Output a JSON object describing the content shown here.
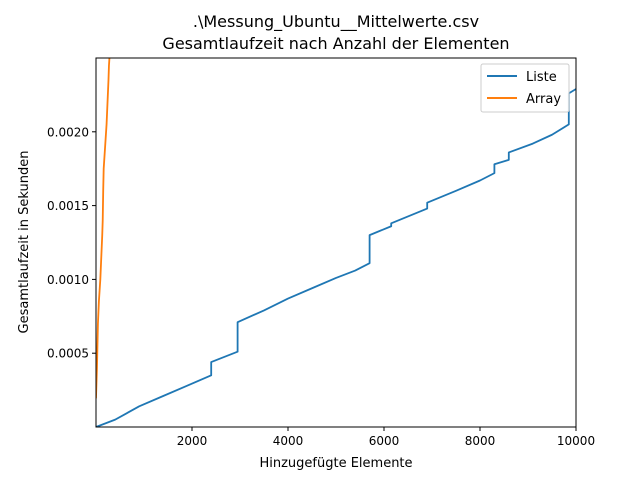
{
  "chart_data": {
    "type": "line",
    "title_line1": ".\\Messung_Ubuntu__Mittelwerte.csv",
    "title_line2": "Gesamtlaufzeit nach Anzahl der Elementen",
    "xlabel": "Hinzugefügte Elemente",
    "ylabel": "Gesamtlaufzeit in Sekunden",
    "xlim": [
      0,
      10000
    ],
    "ylim": [
      0,
      0.0025
    ],
    "x_ticks": [
      2000,
      4000,
      6000,
      8000,
      10000
    ],
    "y_ticks": [
      0.0005,
      0.001,
      0.0015,
      0.002
    ],
    "x_tick_labels": [
      "2000",
      "4000",
      "6000",
      "8000",
      "10000"
    ],
    "y_tick_labels": [
      "0.0005",
      "0.0010",
      "0.0015",
      "0.0020"
    ],
    "grid": false,
    "legend_position": "top-right",
    "series": [
      {
        "name": "Liste",
        "color": "#1f77b4",
        "points": [
          [
            0,
            0.0
          ],
          [
            400,
            5e-05
          ],
          [
            900,
            0.00014
          ],
          [
            1400,
            0.00021
          ],
          [
            1900,
            0.00028
          ],
          [
            2400,
            0.00035
          ],
          [
            2400,
            0.00044
          ],
          [
            2950,
            0.00051
          ],
          [
            2950,
            0.00071
          ],
          [
            3500,
            0.00079
          ],
          [
            4000,
            0.00087
          ],
          [
            4500,
            0.00094
          ],
          [
            5000,
            0.00101
          ],
          [
            5400,
            0.00106
          ],
          [
            5700,
            0.00111
          ],
          [
            5700,
            0.0013
          ],
          [
            6150,
            0.00136
          ],
          [
            6150,
            0.00138
          ],
          [
            6900,
            0.00148
          ],
          [
            6900,
            0.00152
          ],
          [
            7500,
            0.0016
          ],
          [
            8000,
            0.00167
          ],
          [
            8300,
            0.00172
          ],
          [
            8300,
            0.00178
          ],
          [
            8600,
            0.00181
          ],
          [
            8600,
            0.00186
          ],
          [
            9100,
            0.00192
          ],
          [
            9500,
            0.00198
          ],
          [
            9850,
            0.00205
          ],
          [
            9850,
            0.00226
          ],
          [
            10000,
            0.00229
          ]
        ]
      },
      {
        "name": "Array",
        "color": "#ff7f0e",
        "points": [
          [
            0,
            0.0002
          ],
          [
            20,
            0.0004
          ],
          [
            40,
            0.0007
          ],
          [
            60,
            0.00085
          ],
          [
            90,
            0.001
          ],
          [
            110,
            0.00115
          ],
          [
            130,
            0.0013
          ],
          [
            140,
            0.0014
          ],
          [
            150,
            0.0016
          ],
          [
            160,
            0.00175
          ],
          [
            180,
            0.00185
          ],
          [
            200,
            0.00195
          ],
          [
            220,
            0.00205
          ],
          [
            240,
            0.0022
          ],
          [
            260,
            0.00235
          ],
          [
            270,
            0.00245
          ],
          [
            280,
            0.0025
          ]
        ]
      }
    ]
  }
}
